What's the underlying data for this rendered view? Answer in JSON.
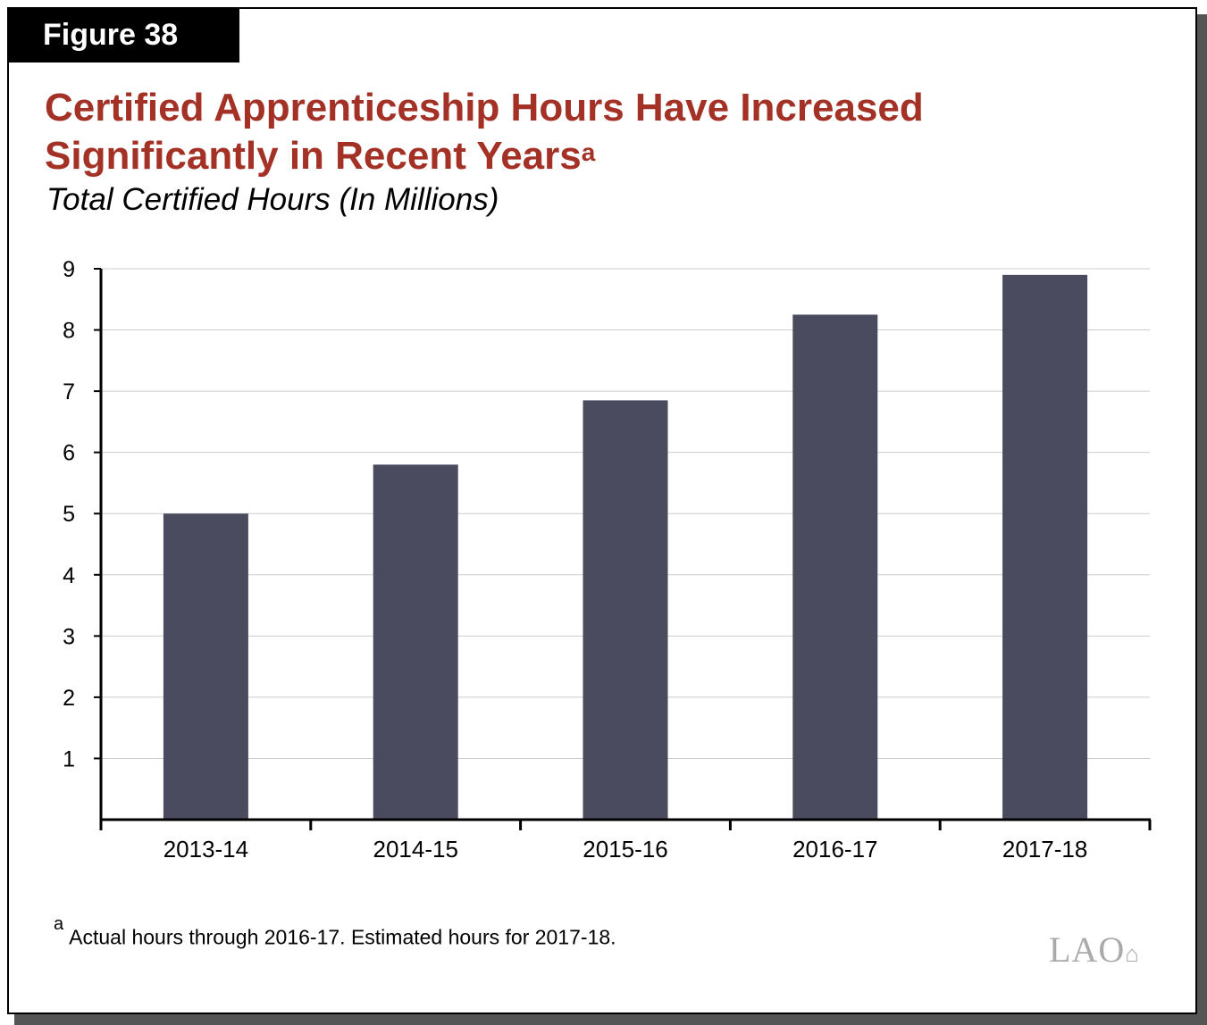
{
  "figure_label": "Figure 38",
  "title": "Certified Apprenticeship Hours Have Increased Significantly in Recent Years",
  "title_footnote_marker": "a",
  "subtitle": "Total Certified Hours (In Millions)",
  "footnote": {
    "marker": "a",
    "text": "Actual hours through 2016-17. Estimated hours for 2017-18."
  },
  "logo_text": "LAO",
  "colors": {
    "title": "#a33125",
    "bar": "#4b4b5f",
    "grid": "#cccccc"
  },
  "chart_data": {
    "type": "bar",
    "title": "Certified Apprenticeship Hours Have Increased Significantly in Recent Years",
    "ylabel": "Total Certified Hours (In Millions)",
    "xlabel": "",
    "categories": [
      "2013-14",
      "2014-15",
      "2015-16",
      "2016-17",
      "2017-18"
    ],
    "values": [
      5.0,
      5.8,
      6.85,
      8.25,
      8.9
    ],
    "ylim": [
      0,
      9
    ],
    "yticks": [
      1,
      2,
      3,
      4,
      5,
      6,
      7,
      8,
      9
    ],
    "grid": true
  }
}
